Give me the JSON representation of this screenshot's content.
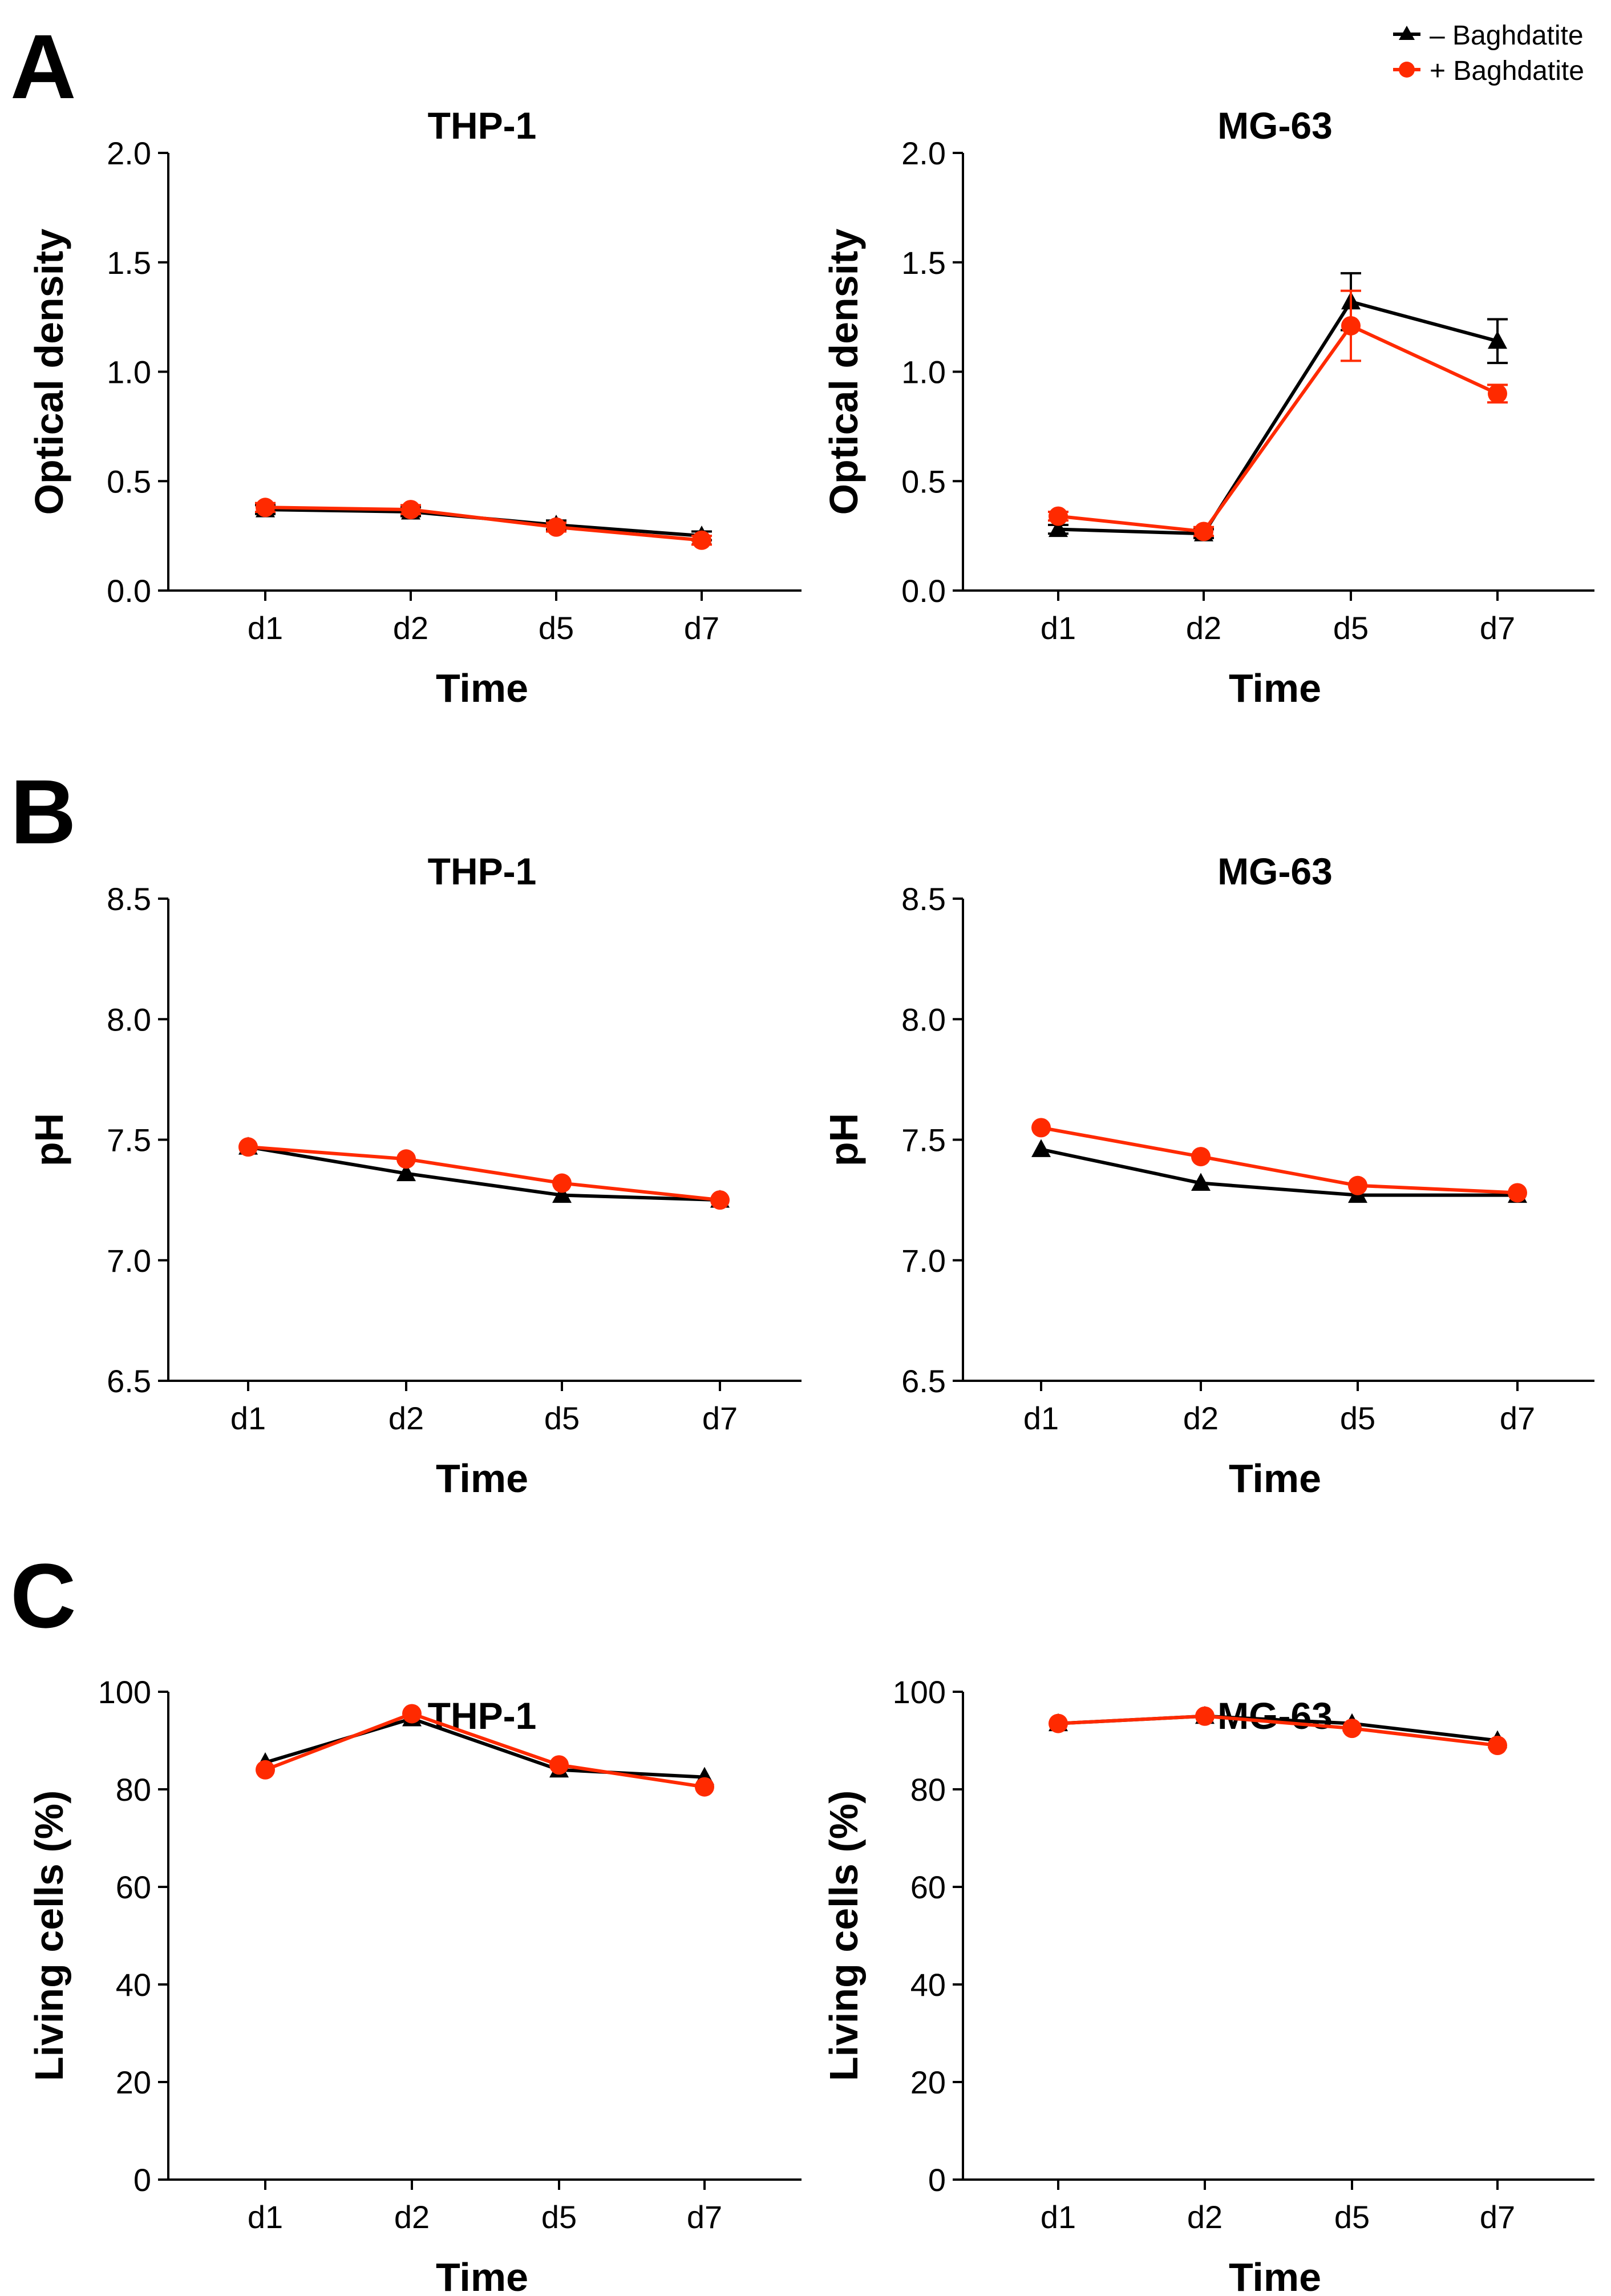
{
  "colors": {
    "minus": "#000000",
    "plus": "#ff2a00",
    "axis": "#000000"
  },
  "legend": {
    "minus_label": "– Baghdatite",
    "plus_label": "+ Baghdatite"
  },
  "panel_letters": [
    "A",
    "B",
    "C"
  ],
  "chart_data": [
    {
      "type": "line",
      "panel": "A",
      "title": "THP-1",
      "xlabel": "Time",
      "ylabel": "Optical density",
      "categories": [
        "d1",
        "d2",
        "d5",
        "d7"
      ],
      "ylim": [
        0.0,
        2.0
      ],
      "yticks": [
        "0.0",
        "0.5",
        "1.0",
        "1.5",
        "2.0"
      ],
      "series": [
        {
          "name": "– Baghdatite",
          "values": [
            0.37,
            0.36,
            0.3,
            0.25
          ],
          "errors": [
            0.02,
            0.02,
            0.02,
            0.02
          ]
        },
        {
          "name": "+ Baghdatite",
          "values": [
            0.38,
            0.37,
            0.29,
            0.23
          ],
          "errors": [
            0.02,
            0.02,
            0.02,
            0.02
          ]
        }
      ]
    },
    {
      "type": "line",
      "panel": "A",
      "title": "MG-63",
      "xlabel": "Time",
      "ylabel": "Optical density",
      "categories": [
        "d1",
        "d2",
        "d5",
        "d7"
      ],
      "ylim": [
        0.0,
        2.0
      ],
      "yticks": [
        "0.0",
        "0.5",
        "1.0",
        "1.5",
        "2.0"
      ],
      "series": [
        {
          "name": "– Baghdatite",
          "values": [
            0.28,
            0.26,
            1.32,
            1.14
          ],
          "errors": [
            0.02,
            0.02,
            0.13,
            0.1
          ]
        },
        {
          "name": "+ Baghdatite",
          "values": [
            0.34,
            0.27,
            1.21,
            0.9
          ],
          "errors": [
            0.02,
            0.02,
            0.16,
            0.04
          ]
        }
      ]
    },
    {
      "type": "line",
      "panel": "B",
      "title": "THP-1",
      "xlabel": "Time",
      "ylabel": "pH",
      "categories": [
        "d1",
        "d2",
        "d5",
        "d7"
      ],
      "ylim": [
        6.5,
        8.5
      ],
      "yticks": [
        "6.5",
        "7.0",
        "7.5",
        "8.0",
        "8.5"
      ],
      "series": [
        {
          "name": "– Baghdatite",
          "values": [
            7.47,
            7.36,
            7.27,
            7.25
          ],
          "errors": [
            0,
            0,
            0,
            0
          ]
        },
        {
          "name": "+ Baghdatite",
          "values": [
            7.47,
            7.42,
            7.32,
            7.25
          ],
          "errors": [
            0,
            0,
            0,
            0
          ]
        }
      ]
    },
    {
      "type": "line",
      "panel": "B",
      "title": "MG-63",
      "xlabel": "Time",
      "ylabel": "pH",
      "categories": [
        "d1",
        "d2",
        "d5",
        "d7"
      ],
      "ylim": [
        6.5,
        8.5
      ],
      "yticks": [
        "6.5",
        "7.0",
        "7.5",
        "8.0",
        "8.5"
      ],
      "series": [
        {
          "name": "– Baghdatite",
          "values": [
            7.46,
            7.32,
            7.27,
            7.27
          ],
          "errors": [
            0,
            0,
            0,
            0
          ]
        },
        {
          "name": "+ Baghdatite",
          "values": [
            7.55,
            7.43,
            7.31,
            7.28
          ],
          "errors": [
            0,
            0,
            0,
            0
          ]
        }
      ]
    },
    {
      "type": "line",
      "panel": "C",
      "title": "THP-1",
      "xlabel": "Time",
      "ylabel": "Living cells (%)",
      "categories": [
        "d1",
        "d2",
        "d5",
        "d7"
      ],
      "ylim": [
        0,
        100
      ],
      "yticks": [
        "0",
        "20",
        "40",
        "60",
        "80",
        "100"
      ],
      "series": [
        {
          "name": "– Baghdatite",
          "values": [
            85.5,
            94.5,
            84,
            82.5
          ],
          "errors": [
            0,
            0,
            0,
            0
          ]
        },
        {
          "name": "+ Baghdatite",
          "values": [
            84,
            95.5,
            85,
            80.5
          ],
          "errors": [
            0,
            0,
            0,
            0
          ]
        }
      ]
    },
    {
      "type": "line",
      "panel": "C",
      "title": "MG-63",
      "xlabel": "Time",
      "ylabel": "Living cells (%)",
      "categories": [
        "d1",
        "d2",
        "d5",
        "d7"
      ],
      "ylim": [
        0,
        100
      ],
      "yticks": [
        "0",
        "20",
        "40",
        "60",
        "80",
        "100"
      ],
      "series": [
        {
          "name": "– Baghdatite",
          "values": [
            93.5,
            95,
            93.5,
            90
          ],
          "errors": [
            0,
            0,
            0,
            0
          ]
        },
        {
          "name": "+ Baghdatite",
          "values": [
            93.5,
            95,
            92.5,
            89
          ],
          "errors": [
            0,
            0,
            0,
            0
          ]
        }
      ]
    }
  ]
}
